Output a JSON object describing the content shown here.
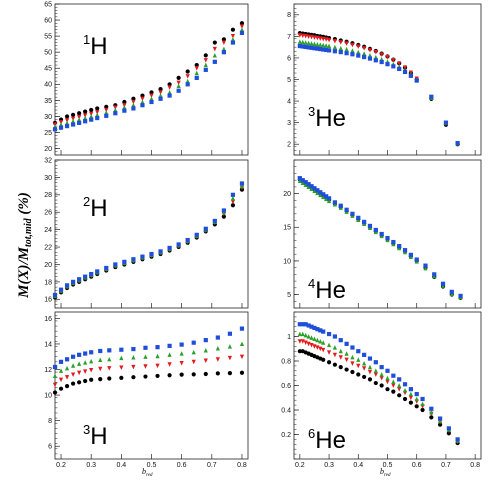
{
  "figure": {
    "ylabel": "M(X)/M",
    "ylabel_sub": "tot,mid",
    "ylabel_unit": " (%)",
    "xlabel": "b",
    "xlabel_sub": "red",
    "series_colors": [
      "#000000",
      "#e41a1c",
      "#2ca02c",
      "#1f4fd8"
    ]
  },
  "chart_data": [
    {
      "type": "scatter",
      "nuclide_mass": "1",
      "nuclide_symbol": "H",
      "xlim": [
        0.18,
        0.82
      ],
      "ylim": [
        18,
        65
      ],
      "xticks": [],
      "yticks": [
        20,
        25,
        30,
        35,
        40,
        45,
        50,
        55,
        60,
        65
      ],
      "x": [
        0.18,
        0.2,
        0.22,
        0.24,
        0.26,
        0.28,
        0.3,
        0.32,
        0.35,
        0.38,
        0.41,
        0.44,
        0.47,
        0.5,
        0.53,
        0.56,
        0.59,
        0.62,
        0.65,
        0.68,
        0.71,
        0.74,
        0.77,
        0.8
      ],
      "series": [
        {
          "values": [
            28,
            29,
            30,
            30.5,
            31,
            31.5,
            32,
            32.5,
            33,
            33.5,
            34.5,
            35.5,
            36.5,
            37.5,
            38.5,
            40,
            42,
            44,
            46,
            49,
            53,
            54,
            57,
            59
          ]
        },
        {
          "values": [
            27.5,
            28.2,
            28.8,
            29.3,
            29.8,
            30.3,
            30.8,
            31.3,
            32,
            32.8,
            33.5,
            34.5,
            35.5,
            36.5,
            37.5,
            39,
            40.5,
            42.5,
            45,
            47.5,
            51,
            53,
            55,
            58
          ]
        },
        {
          "values": [
            26.8,
            27.5,
            28,
            28.5,
            29,
            29.5,
            30,
            30.5,
            31.2,
            32,
            32.8,
            33.5,
            34.5,
            35.5,
            36.5,
            37.5,
            39.5,
            41,
            43.5,
            46,
            49,
            51,
            54,
            57
          ]
        },
        {
          "values": [
            26,
            26.5,
            27,
            27.5,
            28,
            28.5,
            29,
            29.5,
            30.2,
            31,
            31.8,
            32.5,
            33.5,
            34.5,
            35.5,
            36.5,
            38,
            40,
            42,
            44.5,
            47,
            50,
            53,
            56
          ]
        }
      ]
    },
    {
      "type": "scatter",
      "nuclide_mass": "3",
      "nuclide_symbol": "He",
      "xlim": [
        0.18,
        0.82
      ],
      "ylim": [
        1.5,
        8.5
      ],
      "xticks": [],
      "yticks": [
        2,
        3,
        4,
        5,
        6,
        7,
        8
      ],
      "x": [
        0.2,
        0.21,
        0.22,
        0.23,
        0.24,
        0.25,
        0.26,
        0.27,
        0.28,
        0.29,
        0.3,
        0.32,
        0.34,
        0.36,
        0.38,
        0.4,
        0.42,
        0.44,
        0.46,
        0.48,
        0.5,
        0.52,
        0.54,
        0.56,
        0.58,
        0.6,
        0.65,
        0.7,
        0.74
      ],
      "series": [
        {
          "values": [
            7.15,
            7.13,
            7.11,
            7.09,
            7.07,
            7.05,
            7.02,
            7,
            6.98,
            6.95,
            6.92,
            6.87,
            6.81,
            6.75,
            6.68,
            6.6,
            6.52,
            6.42,
            6.32,
            6.2,
            6.07,
            5.92,
            5.75,
            5.55,
            5.3,
            5,
            4.1,
            2.9,
            2
          ]
        },
        {
          "values": [
            7.05,
            7.03,
            7.01,
            6.99,
            6.97,
            6.95,
            6.93,
            6.9,
            6.88,
            6.86,
            6.83,
            6.78,
            6.73,
            6.67,
            6.6,
            6.53,
            6.45,
            6.36,
            6.27,
            6.16,
            6.04,
            5.9,
            5.74,
            5.56,
            5.32,
            5.04,
            4.15,
            2.95,
            2.02
          ]
        },
        {
          "values": [
            6.75,
            6.73,
            6.71,
            6.69,
            6.67,
            6.65,
            6.63,
            6.61,
            6.59,
            6.57,
            6.55,
            6.5,
            6.45,
            6.4,
            6.34,
            6.27,
            6.2,
            6.12,
            6.03,
            5.94,
            5.83,
            5.71,
            5.58,
            5.43,
            5.23,
            4.98,
            4.15,
            2.98,
            2.03
          ]
        },
        {
          "values": [
            6.55,
            6.53,
            6.51,
            6.49,
            6.47,
            6.45,
            6.43,
            6.41,
            6.39,
            6.37,
            6.35,
            6.31,
            6.27,
            6.22,
            6.17,
            6.11,
            6.04,
            5.97,
            5.89,
            5.81,
            5.71,
            5.61,
            5.49,
            5.35,
            5.17,
            4.95,
            4.2,
            3,
            2.05
          ]
        }
      ]
    },
    {
      "type": "scatter",
      "nuclide_mass": "2",
      "nuclide_symbol": "H",
      "xlim": [
        0.18,
        0.82
      ],
      "ylim": [
        15,
        32
      ],
      "xticks": [],
      "yticks": [
        16,
        18,
        20,
        22,
        24,
        26,
        28,
        30,
        32
      ],
      "x": [
        0.18,
        0.2,
        0.22,
        0.24,
        0.26,
        0.28,
        0.3,
        0.32,
        0.35,
        0.38,
        0.41,
        0.44,
        0.47,
        0.5,
        0.53,
        0.56,
        0.59,
        0.62,
        0.65,
        0.68,
        0.71,
        0.74,
        0.77,
        0.8
      ],
      "series": [
        {
          "values": [
            16.2,
            16.8,
            17.3,
            17.7,
            18,
            18.3,
            18.6,
            18.9,
            19.3,
            19.7,
            20,
            20.3,
            20.6,
            20.9,
            21.2,
            21.6,
            22,
            22.5,
            23.1,
            23.8,
            24.6,
            25.5,
            26.8,
            28.6
          ]
        },
        {
          "values": [
            16.3,
            16.9,
            17.4,
            17.8,
            18.1,
            18.4,
            18.7,
            19,
            19.4,
            19.8,
            20.1,
            20.4,
            20.7,
            21,
            21.3,
            21.7,
            22.1,
            22.6,
            23.2,
            23.9,
            24.8,
            25.8,
            27.2,
            28.8
          ]
        },
        {
          "values": [
            16.4,
            17,
            17.5,
            17.9,
            18.2,
            18.5,
            18.8,
            19.1,
            19.5,
            19.9,
            20.2,
            20.5,
            20.8,
            21.1,
            21.4,
            21.8,
            22.2,
            22.7,
            23.3,
            24,
            24.9,
            26,
            27.6,
            29
          ]
        },
        {
          "values": [
            16.5,
            17.1,
            17.6,
            18,
            18.3,
            18.6,
            18.9,
            19.2,
            19.6,
            20,
            20.3,
            20.6,
            20.9,
            21.2,
            21.5,
            21.9,
            22.3,
            22.8,
            23.4,
            24.1,
            25,
            26.2,
            28,
            29.3
          ]
        }
      ]
    },
    {
      "type": "scatter",
      "nuclide_mass": "4",
      "nuclide_symbol": "He",
      "xlim": [
        0.18,
        0.82
      ],
      "ylim": [
        3,
        25
      ],
      "xticks": [],
      "yticks": [
        5,
        10,
        15,
        20
      ],
      "x": [
        0.2,
        0.21,
        0.22,
        0.23,
        0.24,
        0.25,
        0.26,
        0.27,
        0.28,
        0.29,
        0.3,
        0.32,
        0.34,
        0.36,
        0.38,
        0.4,
        0.42,
        0.44,
        0.46,
        0.48,
        0.5,
        0.52,
        0.54,
        0.56,
        0.58,
        0.6,
        0.63,
        0.66,
        0.69,
        0.72,
        0.75
      ],
      "series": [
        {
          "values": [
            22.1,
            21.8,
            21.5,
            21.2,
            20.9,
            20.6,
            20.3,
            20,
            19.7,
            19.4,
            19.1,
            18.5,
            18,
            17.4,
            16.8,
            16.2,
            15.6,
            15,
            14.4,
            13.8,
            13.2,
            12.6,
            12,
            11.4,
            10.7,
            10,
            9,
            7.6,
            6.2,
            5,
            4.5
          ]
        },
        {
          "values": [
            22.2,
            21.9,
            21.6,
            21.3,
            21,
            20.7,
            20.4,
            20.1,
            19.8,
            19.5,
            19.2,
            18.6,
            18.1,
            17.5,
            16.9,
            16.3,
            15.7,
            15.1,
            14.5,
            13.9,
            13.3,
            12.7,
            12.1,
            11.5,
            10.8,
            10.1,
            9.1,
            7.8,
            6.4,
            5.2,
            4.7
          ]
        },
        {
          "values": [
            21.9,
            21.6,
            21.3,
            21,
            20.7,
            20.4,
            20.1,
            19.8,
            19.5,
            19.2,
            18.9,
            18.4,
            17.9,
            17.3,
            16.7,
            16.1,
            15.5,
            14.9,
            14.3,
            13.7,
            13.1,
            12.5,
            11.9,
            11.3,
            10.6,
            9.9,
            8.9,
            7.7,
            6.3,
            5.1,
            4.6
          ]
        },
        {
          "values": [
            22.3,
            22,
            21.7,
            21.4,
            21.1,
            20.8,
            20.5,
            20.2,
            19.9,
            19.6,
            19.3,
            18.7,
            18.2,
            17.6,
            17,
            16.4,
            15.8,
            15.2,
            14.6,
            14,
            13.4,
            12.8,
            12.2,
            11.6,
            10.9,
            10.2,
            9.3,
            8,
            6.6,
            5.4,
            4.8
          ]
        }
      ]
    },
    {
      "type": "scatter",
      "nuclide_mass": "3",
      "nuclide_symbol": "H",
      "xlim": [
        0.18,
        0.82
      ],
      "ylim": [
        5,
        16.5
      ],
      "xticks": [
        0.2,
        0.3,
        0.4,
        0.5,
        0.6,
        0.7,
        0.8
      ],
      "yticks": [
        6,
        8,
        10,
        12,
        14,
        16
      ],
      "x": [
        0.18,
        0.2,
        0.22,
        0.24,
        0.26,
        0.28,
        0.3,
        0.33,
        0.36,
        0.4,
        0.44,
        0.48,
        0.52,
        0.56,
        0.6,
        0.64,
        0.68,
        0.72,
        0.76,
        0.8
      ],
      "series": [
        {
          "values": [
            10.2,
            10.5,
            10.7,
            10.9,
            11,
            11.1,
            11.2,
            11.25,
            11.3,
            11.35,
            11.4,
            11.45,
            11.5,
            11.55,
            11.6,
            11.62,
            11.65,
            11.7,
            11.72,
            11.75
          ]
        },
        {
          "values": [
            10.8,
            11.2,
            11.4,
            11.6,
            11.75,
            11.85,
            11.95,
            12.05,
            12.1,
            12.15,
            12.2,
            12.25,
            12.3,
            12.4,
            12.5,
            12.6,
            12.7,
            12.8,
            12.9,
            13
          ]
        },
        {
          "values": [
            11.5,
            11.9,
            12.1,
            12.3,
            12.45,
            12.55,
            12.65,
            12.75,
            12.8,
            12.9,
            12.95,
            13,
            13.05,
            13.15,
            13.25,
            13.35,
            13.5,
            13.65,
            13.8,
            14
          ]
        },
        {
          "values": [
            12.2,
            12.6,
            12.8,
            13,
            13.15,
            13.25,
            13.35,
            13.45,
            13.5,
            13.55,
            13.6,
            13.7,
            13.75,
            13.85,
            13.95,
            14.1,
            14.3,
            14.5,
            14.8,
            15.2
          ]
        }
      ]
    },
    {
      "type": "scatter",
      "nuclide_mass": "6",
      "nuclide_symbol": "He",
      "xlim": [
        0.18,
        0.82
      ],
      "ylim": [
        0,
        1.2
      ],
      "xticks": [
        0.2,
        0.3,
        0.4,
        0.5,
        0.6,
        0.7,
        0.8
      ],
      "yticks": [
        0.2,
        0.4,
        0.6,
        0.8,
        1
      ],
      "x": [
        0.2,
        0.21,
        0.22,
        0.23,
        0.24,
        0.25,
        0.26,
        0.27,
        0.28,
        0.3,
        0.32,
        0.34,
        0.36,
        0.38,
        0.4,
        0.42,
        0.44,
        0.46,
        0.48,
        0.5,
        0.52,
        0.54,
        0.56,
        0.58,
        0.6,
        0.62,
        0.65,
        0.68,
        0.71,
        0.74
      ],
      "series": [
        {
          "values": [
            0.88,
            0.88,
            0.87,
            0.86,
            0.85,
            0.84,
            0.83,
            0.82,
            0.81,
            0.79,
            0.77,
            0.75,
            0.73,
            0.71,
            0.69,
            0.67,
            0.65,
            0.62,
            0.6,
            0.57,
            0.55,
            0.52,
            0.49,
            0.46,
            0.43,
            0.4,
            0.34,
            0.28,
            0.21,
            0.13
          ]
        },
        {
          "values": [
            0.96,
            0.96,
            0.95,
            0.94,
            0.93,
            0.92,
            0.91,
            0.9,
            0.89,
            0.87,
            0.85,
            0.83,
            0.81,
            0.78,
            0.76,
            0.74,
            0.71,
            0.69,
            0.66,
            0.63,
            0.6,
            0.57,
            0.54,
            0.5,
            0.47,
            0.43,
            0.37,
            0.3,
            0.23,
            0.14
          ]
        },
        {
          "values": [
            1.02,
            1.02,
            1.01,
            1,
            0.99,
            0.98,
            0.97,
            0.96,
            0.95,
            0.93,
            0.91,
            0.88,
            0.86,
            0.83,
            0.81,
            0.78,
            0.75,
            0.72,
            0.69,
            0.66,
            0.63,
            0.6,
            0.56,
            0.53,
            0.49,
            0.45,
            0.38,
            0.31,
            0.24,
            0.15
          ]
        },
        {
          "values": [
            1.1,
            1.1,
            1.1,
            1.09,
            1.08,
            1.07,
            1.06,
            1.05,
            1.04,
            1.02,
            1,
            0.97,
            0.94,
            0.91,
            0.88,
            0.85,
            0.82,
            0.79,
            0.75,
            0.72,
            0.68,
            0.65,
            0.61,
            0.57,
            0.53,
            0.49,
            0.41,
            0.33,
            0.25,
            0.16
          ]
        }
      ]
    }
  ]
}
